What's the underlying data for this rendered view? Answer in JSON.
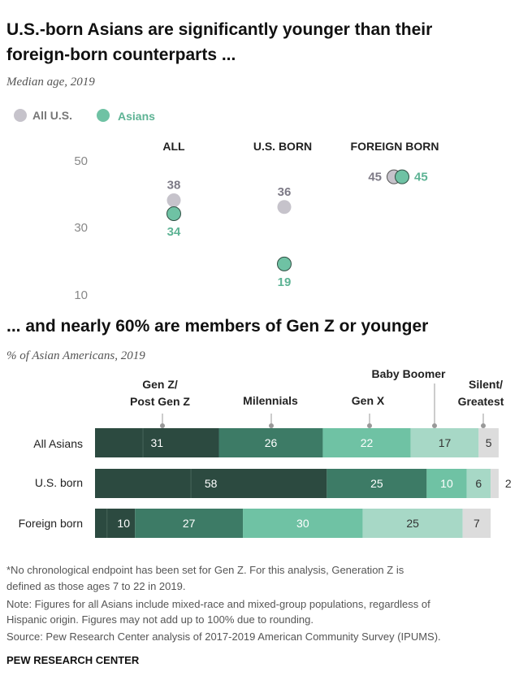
{
  "chart_data": [
    {
      "type": "scatter",
      "title": "U.S.-born Asians are significantly younger than their foreign-born counterparts ...",
      "title_lines": [
        "U.S.-born Asians are significantly younger than their",
        "foreign-born counterparts ..."
      ],
      "subtitle": "Median age, 2019",
      "categories": [
        "ALL",
        "U.S. BORN",
        "FOREIGN BORN"
      ],
      "ylim": [
        10,
        50
      ],
      "yticks": [
        "10",
        "30",
        "50"
      ],
      "series": [
        {
          "name": "All U.S.",
          "values": [
            38,
            36,
            45
          ],
          "color": "#c6c3cb"
        },
        {
          "name": "Asians",
          "values": [
            34,
            19,
            45
          ],
          "color": "#6fc2a4"
        }
      ]
    },
    {
      "type": "bar",
      "stacked": true,
      "orientation": "horizontal",
      "title": "... and nearly 60% are members of Gen Z or younger",
      "subtitle": "% of Asian Americans, 2019",
      "categories": [
        "All Asians",
        "U.S. born",
        "Foreign born"
      ],
      "segment_labels": [
        {
          "lines": [
            "Gen Z/",
            "Post Gen Z"
          ]
        },
        {
          "lines": [
            "Milennials"
          ]
        },
        {
          "lines": [
            "Gen X"
          ]
        },
        {
          "lines": [
            "Baby Boomer"
          ]
        },
        {
          "lines": [
            "Silent/",
            "Greatest"
          ]
        }
      ],
      "series": [
        {
          "name": "Post Gen Z",
          "values": [
            12,
            24,
            3
          ],
          "color": "#2c4a40",
          "text_color": "#ffffff"
        },
        {
          "name": "Gen Z",
          "values": [
            19,
            34,
            7
          ],
          "color": "#2c4a40",
          "text_color": "#ffffff"
        },
        {
          "name": "Milennials",
          "values": [
            26,
            25,
            27
          ],
          "color": "#3d7b66",
          "text_color": "#ffffff"
        },
        {
          "name": "Gen X",
          "values": [
            22,
            10,
            30
          ],
          "color": "#6fc2a4",
          "text_color": "#ffffff"
        },
        {
          "name": "Baby Boomer",
          "values": [
            17,
            6,
            25
          ],
          "color": "#a7d8c6",
          "text_color": "#333333"
        },
        {
          "name": "Silent/Greatest",
          "values": [
            5,
            2,
            7
          ],
          "color": "#dcdcdc",
          "text_color": "#333333"
        }
      ],
      "data_labels": [
        [
          "31",
          "26",
          "22",
          "17",
          "5"
        ],
        [
          "58",
          "25",
          "10",
          "6",
          "2"
        ],
        [
          "10",
          "27",
          "30",
          "25",
          "7"
        ]
      ]
    }
  ],
  "notes": [
    "*No chronological endpoint has been set for Gen Z. For this analysis, Generation Z is",
    "defined as those ages 7 to 22 in 2019.",
    "Note: Figures for all Asians include mixed-race and mixed-group populations, regardless of",
    "Hispanic origin. Figures may not add up to 100% due to rounding.",
    "Source: Pew Research Center analysis of 2017-2019 American Community Survey (IPUMS)."
  ],
  "source_brand": "PEW RESEARCH CENTER"
}
